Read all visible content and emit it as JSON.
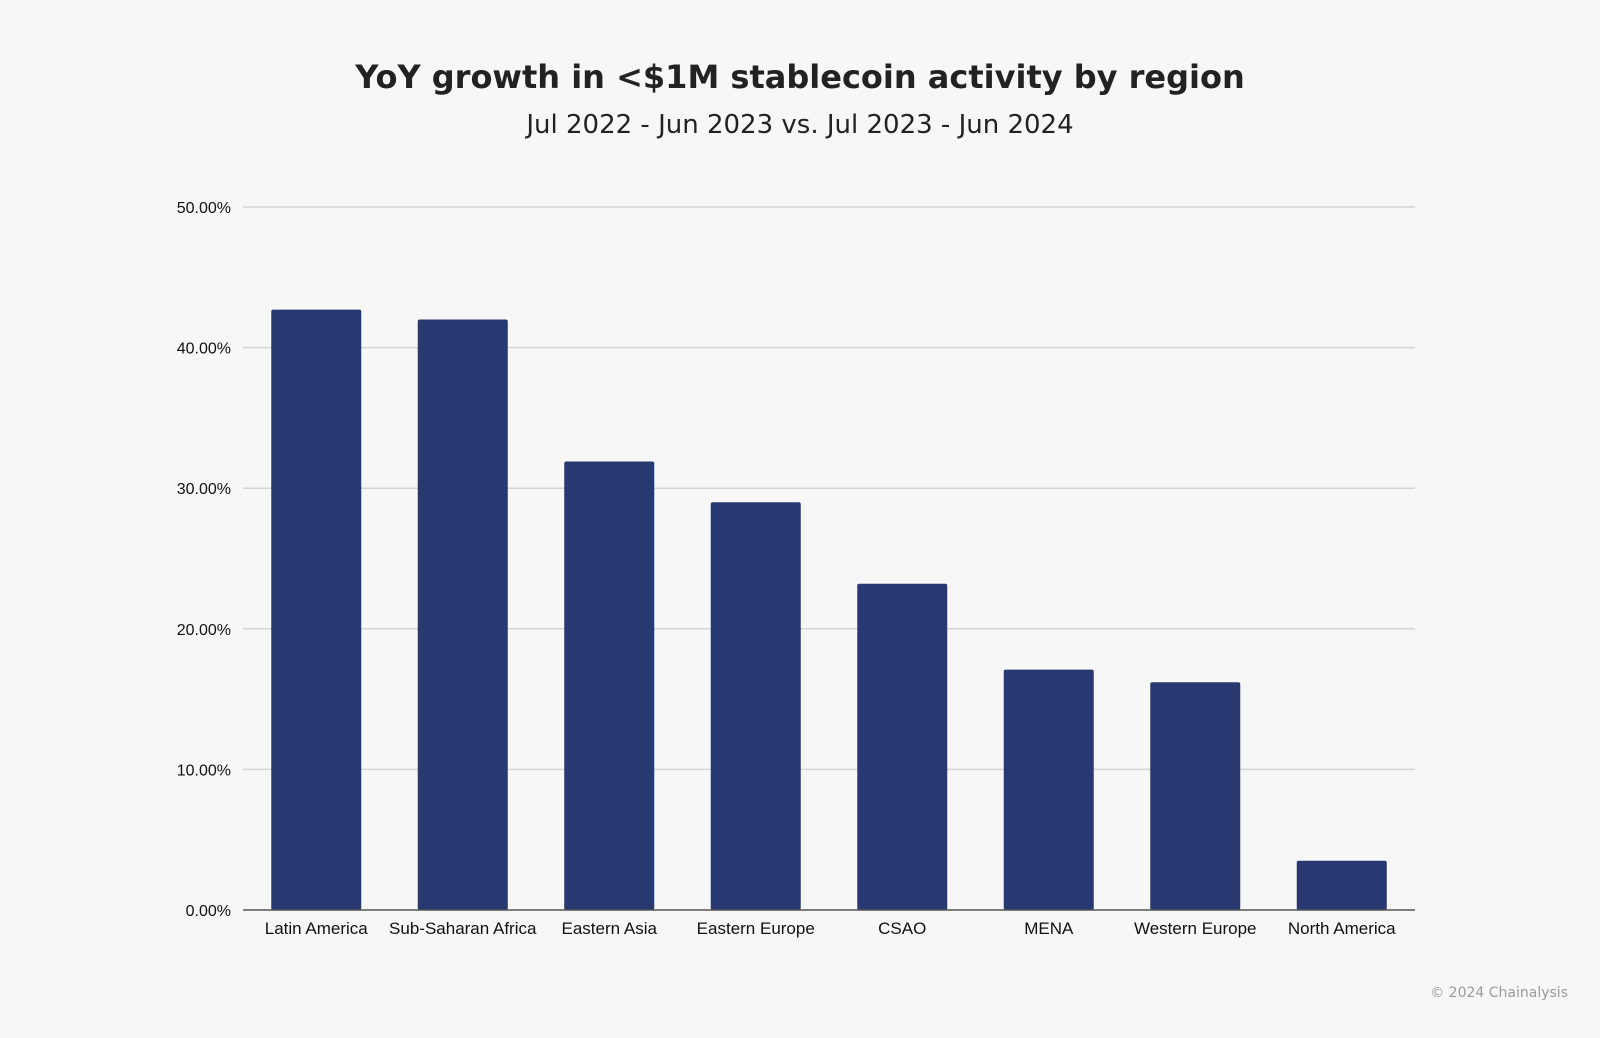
{
  "chart_data": {
    "type": "bar",
    "title": "YoY growth in <$1M stablecoin activity by region",
    "subtitle": "Jul 2022 - Jun 2023 vs. Jul 2023 - Jun 2024",
    "categories": [
      "Latin America",
      "Sub-Saharan Africa",
      "Eastern Asia",
      "Eastern Europe",
      "CSAO",
      "MENA",
      "Western Europe",
      "North America"
    ],
    "values": [
      42.7,
      42.0,
      31.9,
      29.0,
      23.2,
      17.1,
      16.2,
      3.5
    ],
    "ylim": [
      0,
      50
    ],
    "yticks": [
      0,
      10,
      20,
      30,
      40,
      50
    ],
    "ytick_labels": [
      "0.00%",
      "10.00%",
      "20.00%",
      "30.00%",
      "40.00%",
      "50.00%"
    ],
    "xlabel": "",
    "ylabel": "",
    "grid": true,
    "legend": "none",
    "bar_color": "#283870"
  },
  "footer": {
    "copyright": "© 2024 Chainalysis"
  }
}
